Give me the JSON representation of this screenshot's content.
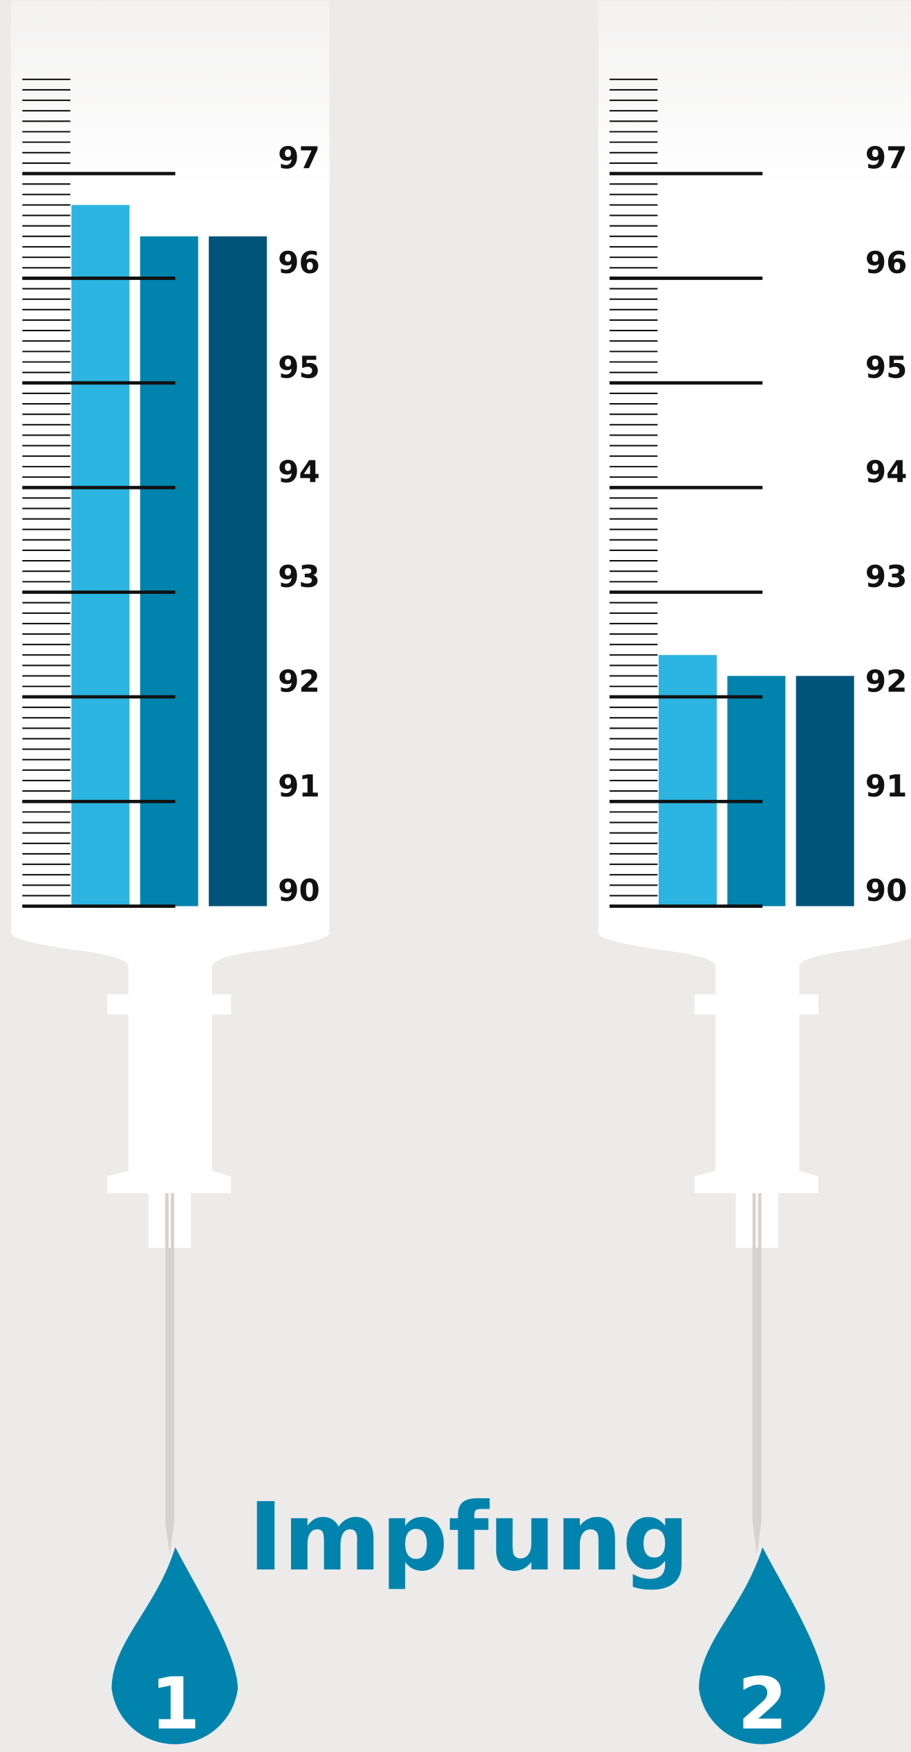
{
  "chart_data": [
    {
      "type": "bar",
      "categories": [
        "1"
      ],
      "ylim": [
        90,
        97
      ],
      "yticks": [
        90,
        91,
        92,
        93,
        94,
        95,
        96,
        97
      ],
      "series": [
        {
          "color": "#2bb5e0",
          "values": [
            96.7
          ]
        },
        {
          "color": "#0084ad",
          "values": [
            96.4
          ]
        },
        {
          "color": "#00547a",
          "values": [
            96.4
          ]
        }
      ]
    },
    {
      "type": "bar",
      "categories": [
        "2"
      ],
      "ylim": [
        90,
        97
      ],
      "yticks": [
        90,
        91,
        92,
        93,
        94,
        95,
        96,
        97
      ],
      "series": [
        {
          "color": "#2bb5e0",
          "values": [
            92.4
          ]
        },
        {
          "color": "#0084ad",
          "values": [
            92.2
          ]
        },
        {
          "color": "#00547a",
          "values": [
            92.2
          ]
        }
      ]
    }
  ],
  "caption": "Impfung"
}
